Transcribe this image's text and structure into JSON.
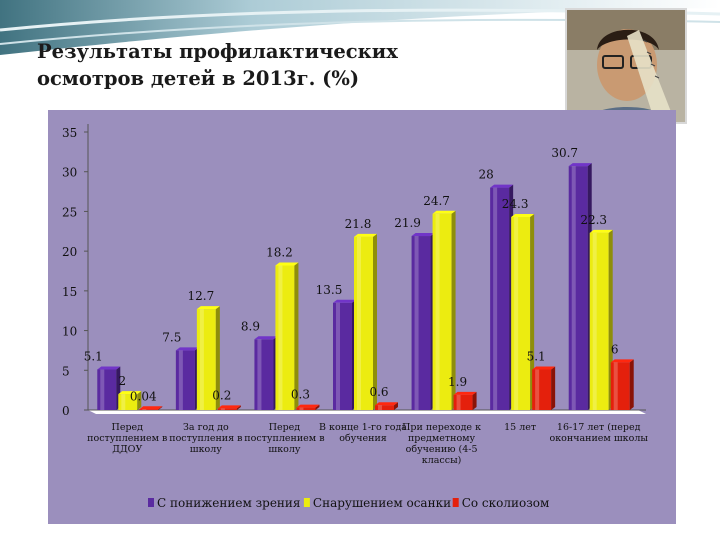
{
  "title": "Результаты профилактических осмотров детей в 2013г. (%)",
  "colors": {
    "purple": "#5a2aa0",
    "yellow": "#ecec10",
    "red": "#e4200c",
    "panel": "#9b8fbd",
    "floor": "#ffffff"
  },
  "chart_data": {
    "type": "bar",
    "title": "",
    "ylabel": "",
    "xlabel": "",
    "ylim": [
      0,
      35
    ],
    "yticks": [
      "0",
      "5",
      "10",
      "15",
      "20",
      "25",
      "30",
      "35"
    ],
    "grid": false,
    "legend_position": "bottom",
    "categories": [
      "Перед поступлением в ДДОУ",
      "За год до поступления в школу",
      "Перед поступлением в школу",
      "В конце 1-го года обучения",
      "При переходе к предметному обучению (4-5 классы)",
      "15 лет",
      "16-17 лет (перед окончанием школы"
    ],
    "series": [
      {
        "name": "С понижением зрения",
        "color": "#5a2aa0",
        "values": [
          5.1,
          7.5,
          8.9,
          13.5,
          21.9,
          28,
          30.7
        ],
        "labels": [
          "5.1",
          "7.5",
          "8.9",
          "13.5",
          "21.9",
          "28",
          "30.7"
        ]
      },
      {
        "name": "Снарушением осанки",
        "color": "#ecec10",
        "values": [
          2,
          12.7,
          18.2,
          21.8,
          24.7,
          24.3,
          22.3
        ],
        "labels": [
          "2",
          "12.7",
          "18.2",
          "21.8",
          "24.7",
          "24.3",
          "22.3"
        ]
      },
      {
        "name": "Со сколиозом",
        "color": "#e4200c",
        "values": [
          0.04,
          0.2,
          0.3,
          0.6,
          1.9,
          5.1,
          6
        ],
        "labels": [
          "0.04",
          "0.2",
          "0.3",
          "0.6",
          "1.9",
          "5.1",
          "6"
        ]
      }
    ]
  }
}
